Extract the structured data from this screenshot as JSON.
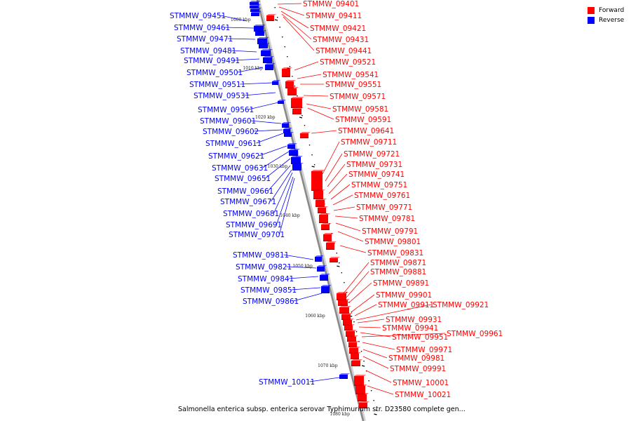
{
  "caption": "Salmonella enterica subsp. enterica serovar Typhimurium str. D23580 complete gen...",
  "legend": [
    {
      "label": "Forward",
      "color": "#ff0000"
    },
    {
      "label": "Reverse",
      "color": "#0000ff"
    }
  ],
  "colors": {
    "forward": "#ff0000",
    "reverse": "#0000ff",
    "backbone": "#8a8a8a"
  },
  "ticks": [
    "1000 kbp",
    "1010 kbp",
    "1020 kbp",
    "1030 kbp",
    "1040 kbp",
    "1050 kbp",
    "1060 kbp",
    "1070 kbp",
    "1080 kbp"
  ],
  "reverse_genes": [
    "STMMW_09451",
    "STMMW_09461",
    "STMMW_09471",
    "STMMW_09481",
    "STMMW_09491",
    "STMMW_09501",
    "STMMW_09511",
    "STMMW_09531",
    "STMMW_09561",
    "STMMW_09601",
    "STMMW_09602",
    "STMMW_09611",
    "STMMW_09621",
    "STMMW_09631",
    "STMMW_09651",
    "STMMW_09661",
    "STMMW_09671",
    "STMMW_09681",
    "STMMW_09691",
    "STMMW_09701",
    "STMMW_09811",
    "STMMW_09821",
    "STMMW_09841",
    "STMMW_09851",
    "STMMW_09861",
    "STMMW_10011"
  ],
  "forward_genes": [
    "STMMW_09401",
    "STMMW_09411",
    "STMMW_09421",
    "STMMW_09431",
    "STMMW_09441",
    "STMMW_09521",
    "STMMW_09541",
    "STMMW_09551",
    "STMMW_09571",
    "STMMW_09581",
    "STMMW_09591",
    "STMMW_09641",
    "STMMW_09711",
    "STMMW_09721",
    "STMMW_09731",
    "STMMW_09741",
    "STMMW_09751",
    "STMMW_09761",
    "STMMW_09771",
    "STMMW_09781",
    "STMMW_09791",
    "STMMW_09801",
    "STMMW_09831",
    "STMMW_09871",
    "STMMW_09881",
    "STMMW_09891",
    "STMMW_09901",
    "STMMW_09911",
    "STMMW_09921",
    "STMMW_09931",
    "STMMW_09941",
    "STMMW_09951",
    "STMMW_09961",
    "STMMW_09971",
    "STMMW_09981",
    "STMMW_09991",
    "STMMW_10001",
    "STMMW_10021"
  ]
}
